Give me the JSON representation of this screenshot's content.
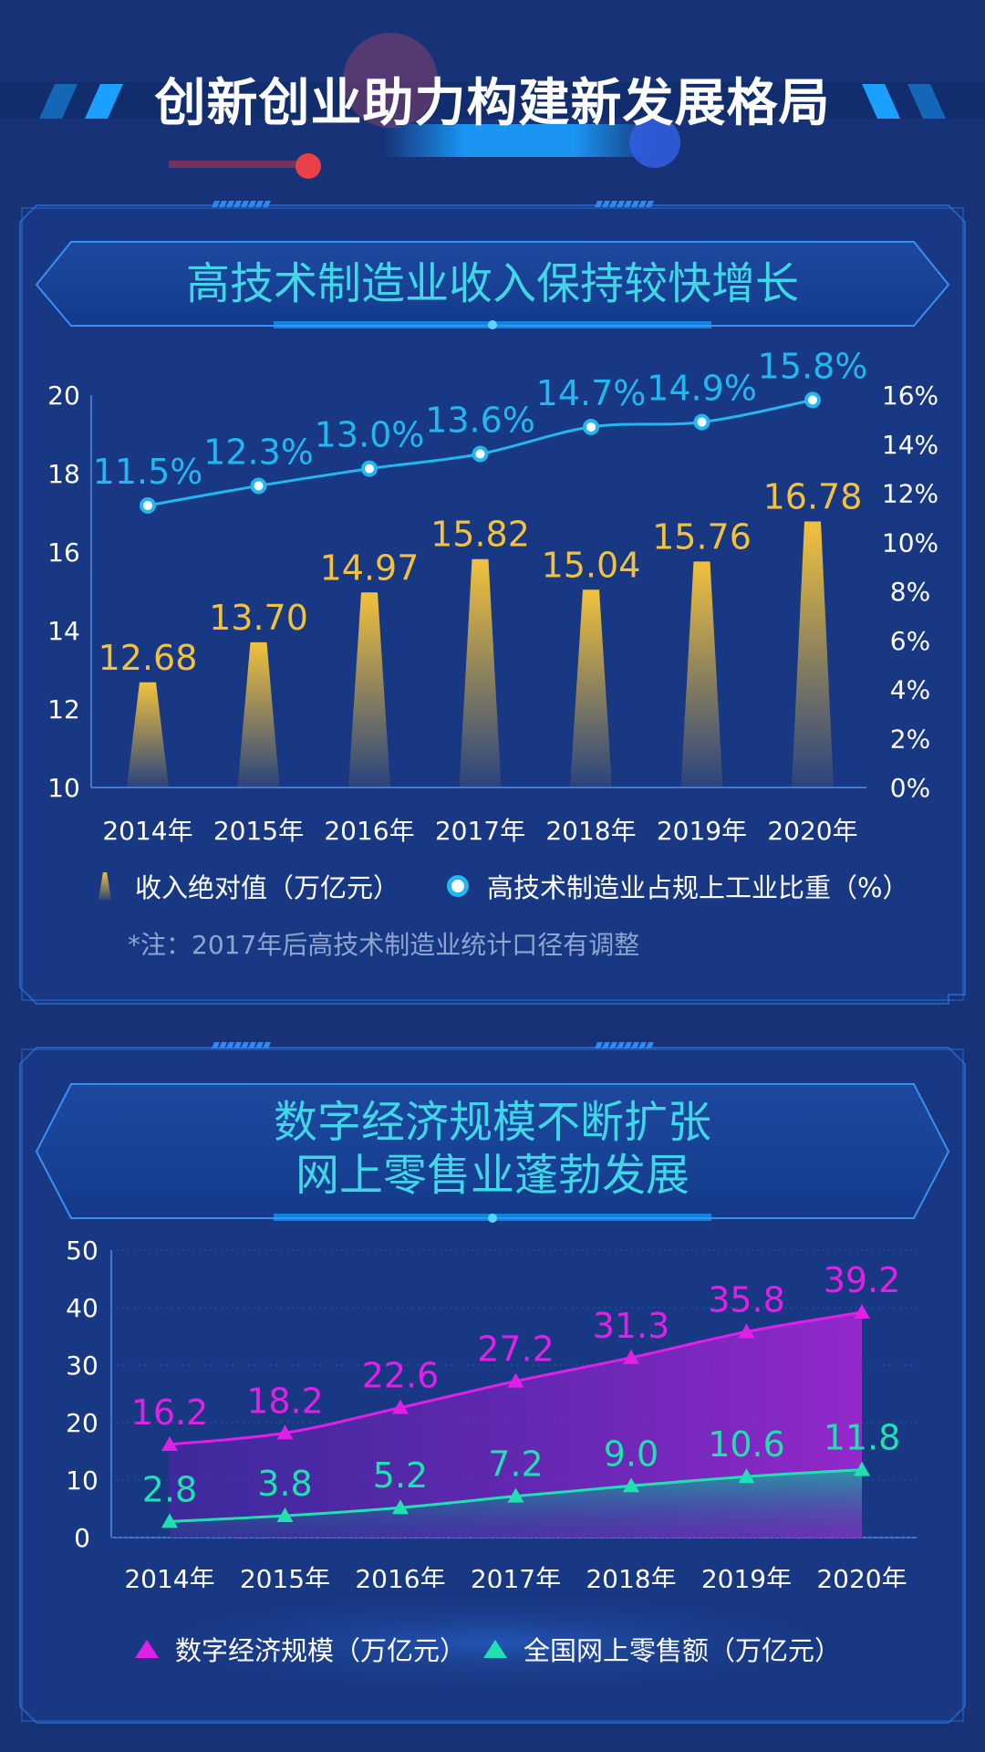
{
  "page": {
    "title": "创新创业助力构建新发展格局"
  },
  "panel1": {
    "title": "高技术制造业收入保持较快增长",
    "legend_bar": "收入绝对值（万亿元）",
    "legend_line": "高技术制造业占规上工业比重（%）",
    "note": "*注：2017年后高技术制造业统计口径有调整"
  },
  "panel2": {
    "title_line1": "数字经济规模不断扩张",
    "title_line2": "网上零售业蓬勃发展",
    "legend_a": "数字经济规模（万亿元）",
    "legend_b": "全国网上零售额（万亿元）"
  },
  "colors": {
    "background": "#173277",
    "bar": "#f2c23d",
    "line1": "#22b7ef",
    "digital": "#e020e6",
    "retail": "#21e0b0",
    "title_cyan": "#3fd7e7"
  },
  "chart_data": [
    {
      "type": "bar",
      "categories": [
        "2014年",
        "2015年",
        "2016年",
        "2017年",
        "2018年",
        "2019年",
        "2020年"
      ],
      "series": [
        {
          "name": "收入绝对值（万亿元）",
          "type": "bar",
          "axis": "left",
          "values": [
            12.68,
            13.7,
            14.97,
            15.82,
            15.04,
            15.76,
            16.78
          ],
          "labels": [
            "12.68",
            "13.70",
            "14.97",
            "15.82",
            "15.04",
            "15.76",
            "16.78"
          ]
        },
        {
          "name": "高技术制造业占规上工业比重（%）",
          "type": "line",
          "axis": "right",
          "values": [
            11.5,
            12.3,
            13.0,
            13.6,
            14.7,
            14.9,
            15.8
          ],
          "labels": [
            "11.5%",
            "12.3%",
            "13.0%",
            "13.6%",
            "14.7%",
            "14.9%",
            "15.8%"
          ]
        }
      ],
      "ylim": [
        10,
        20
      ],
      "yticks": [
        "10",
        "12",
        "14",
        "16",
        "18",
        "20"
      ],
      "y2lim": [
        0,
        16
      ],
      "y2ticks": [
        "0%",
        "2%",
        "4%",
        "6%",
        "8%",
        "10%",
        "12%",
        "14%",
        "16%"
      ]
    },
    {
      "type": "area",
      "categories": [
        "2014年",
        "2015年",
        "2016年",
        "2017年",
        "2018年",
        "2019年",
        "2020年"
      ],
      "series": [
        {
          "name": "数字经济规模（万亿元）",
          "values": [
            16.2,
            18.2,
            22.6,
            27.2,
            31.3,
            35.8,
            39.2
          ],
          "labels": [
            "16.2",
            "18.2",
            "22.6",
            "27.2",
            "31.3",
            "35.8",
            "39.2"
          ]
        },
        {
          "name": "全国网上零售额（万亿元）",
          "values": [
            2.8,
            3.8,
            5.2,
            7.2,
            9.0,
            10.6,
            11.8
          ],
          "labels": [
            "2.8",
            "3.8",
            "5.2",
            "7.2",
            "9.0",
            "10.6",
            "11.8"
          ]
        }
      ],
      "ylim": [
        0,
        50
      ],
      "yticks": [
        "0",
        "10",
        "20",
        "30",
        "40",
        "50"
      ]
    }
  ]
}
